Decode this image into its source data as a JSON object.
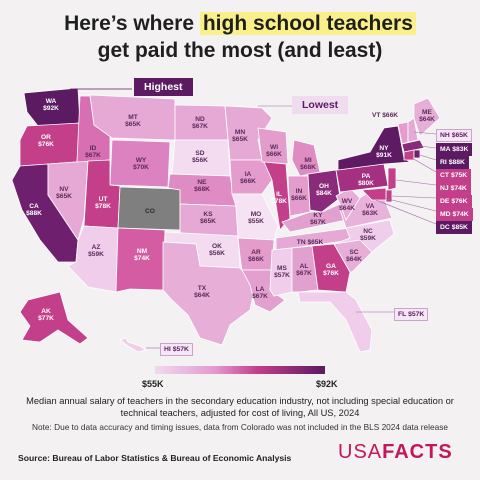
{
  "title": {
    "line1_pre": "Here’s where ",
    "line1_highlight": "high school teachers",
    "line2": "get paid the most (and least)"
  },
  "badges": {
    "highest": "Highest",
    "lowest": "Lowest"
  },
  "colors": {
    "background": "#f3f1f2",
    "darkest": "#5b1a62",
    "dark": "#8a2a7a",
    "mid": "#c43f8a",
    "light": "#e39ad0",
    "lightest": "#efd9ee",
    "no_data": "#7f7f7f",
    "brand": "#c2185b"
  },
  "states": [
    {
      "abbr": "WA",
      "value": "$92K"
    },
    {
      "abbr": "OR",
      "value": "$76K"
    },
    {
      "abbr": "CA",
      "value": "$88K"
    },
    {
      "abbr": "ID",
      "value": "$67K"
    },
    {
      "abbr": "NV",
      "value": "$65K"
    },
    {
      "abbr": "MT",
      "value": "$65K"
    },
    {
      "abbr": "WY",
      "value": "$70K"
    },
    {
      "abbr": "UT",
      "value": "$78K"
    },
    {
      "abbr": "AZ",
      "value": "$59K"
    },
    {
      "abbr": "CO",
      "value": ""
    },
    {
      "abbr": "NM",
      "value": "$74K"
    },
    {
      "abbr": "ND",
      "value": "$67K"
    },
    {
      "abbr": "SD",
      "value": "$56K"
    },
    {
      "abbr": "NE",
      "value": "$68K"
    },
    {
      "abbr": "KS",
      "value": "$65K"
    },
    {
      "abbr": "OK",
      "value": "$56K"
    },
    {
      "abbr": "TX",
      "value": "$64K"
    },
    {
      "abbr": "MN",
      "value": "$65K"
    },
    {
      "abbr": "IA",
      "value": "$66K"
    },
    {
      "abbr": "MO",
      "value": "$55K"
    },
    {
      "abbr": "AR",
      "value": "$66K"
    },
    {
      "abbr": "LA",
      "value": "$67K"
    },
    {
      "abbr": "WI",
      "value": "$66K"
    },
    {
      "abbr": "IL",
      "value": "$78K"
    },
    {
      "abbr": "MI",
      "value": "$68K"
    },
    {
      "abbr": "IN",
      "value": "$66K"
    },
    {
      "abbr": "OH",
      "value": "$84K"
    },
    {
      "abbr": "KY",
      "value": "$67K"
    },
    {
      "abbr": "TN",
      "value": "$65K"
    },
    {
      "abbr": "MS",
      "value": "$57K"
    },
    {
      "abbr": "AL",
      "value": "$67K"
    },
    {
      "abbr": "GA",
      "value": "$76K"
    },
    {
      "abbr": "SC",
      "value": "$64K"
    },
    {
      "abbr": "NC",
      "value": "$59K"
    },
    {
      "abbr": "VA",
      "value": "$63K"
    },
    {
      "abbr": "WV",
      "value": "$64K"
    },
    {
      "abbr": "PA",
      "value": "$80K"
    },
    {
      "abbr": "NY",
      "value": "$91K"
    },
    {
      "abbr": "VT",
      "value": "$66K"
    },
    {
      "abbr": "ME",
      "value": "$64K"
    },
    {
      "abbr": "AK",
      "value": "$77K"
    }
  ],
  "callouts": [
    {
      "abbr": "NH",
      "value": "$65K"
    },
    {
      "abbr": "MA",
      "value": "$83K"
    },
    {
      "abbr": "RI",
      "value": "$88K"
    },
    {
      "abbr": "CT",
      "value": "$75K"
    },
    {
      "abbr": "NJ",
      "value": "$74K"
    },
    {
      "abbr": "DE",
      "value": "$76K"
    },
    {
      "abbr": "MD",
      "value": "$74K"
    },
    {
      "abbr": "DC",
      "value": "$85K"
    },
    {
      "abbr": "FL",
      "value": "$57K"
    },
    {
      "abbr": "HI",
      "value": "$57K"
    }
  ],
  "legend": {
    "min": "$55K",
    "max": "$92K"
  },
  "caption": "Median annual salary of teachers in the secondary education industry, not including special education or technical teachers, adjusted for cost of living, All US, 2024",
  "note": "Note: Due to data accuracy and timing issues, data from Colorado was not included in the BLS 2024 data release",
  "source": "Source: Bureau of Labor Statistics & Bureau of Economic Analysis",
  "brand": {
    "usa": "USA",
    "facts": "FACTS"
  }
}
